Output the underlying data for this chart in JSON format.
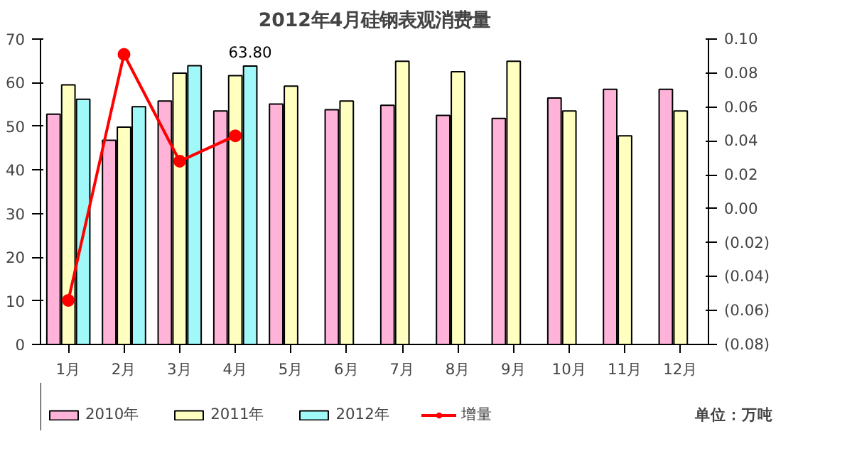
{
  "chart_data": {
    "type": "bar",
    "title": "2012年4月硅钢表观消费量",
    "categories": [
      "1月",
      "2月",
      "3月",
      "4月",
      "5月",
      "6月",
      "7月",
      "8月",
      "9月",
      "10月",
      "11月",
      "12月"
    ],
    "series": [
      {
        "name": "2010年",
        "color": "#ffb3d9",
        "values": [
          52.8,
          46.8,
          55.8,
          53.5,
          55.1,
          53.8,
          54.8,
          52.5,
          51.8,
          56.5,
          58.5,
          58.5
        ]
      },
      {
        "name": "2011年",
        "color": "#ffffc0",
        "values": [
          59.5,
          49.8,
          62.2,
          61.6,
          59.2,
          55.8,
          64.9,
          62.5,
          64.9,
          53.5,
          47.8,
          53.5
        ]
      },
      {
        "name": "2012年",
        "color": "#a0f8f8",
        "values": [
          56.2,
          54.5,
          63.9,
          63.8,
          null,
          null,
          null,
          null,
          null,
          null,
          null,
          null
        ],
        "value_labels": [
          null,
          null,
          null,
          "63.80",
          null,
          null,
          null,
          null,
          null,
          null,
          null,
          null
        ]
      },
      {
        "name": "增量",
        "type": "line",
        "axis": "y2",
        "color": "#ff0000",
        "marker": "circle",
        "values": [
          -0.054,
          0.091,
          0.028,
          0.043,
          null,
          null,
          null,
          null,
          null,
          null,
          null,
          null
        ]
      }
    ],
    "ylim": [
      0,
      70
    ],
    "yticks": [
      0,
      10,
      20,
      30,
      40,
      50,
      60,
      70
    ],
    "y2lim": [
      -0.08,
      0.1
    ],
    "y2ticks": [
      {
        "value": -0.08,
        "label": "(0.08)"
      },
      {
        "value": -0.06,
        "label": "(0.06)"
      },
      {
        "value": -0.04,
        "label": "(0.04)"
      },
      {
        "value": -0.02,
        "label": "(0.02)"
      },
      {
        "value": 0,
        "label": "0.00"
      },
      {
        "value": 0.02,
        "label": "0.02"
      },
      {
        "value": 0.04,
        "label": "0.04"
      },
      {
        "value": 0.06,
        "label": "0.06"
      },
      {
        "value": 0.08,
        "label": "0.08"
      },
      {
        "value": 0.1,
        "label": "0.10"
      }
    ],
    "legend": "bottom",
    "grid": false,
    "annotations": [
      "单位：万吨"
    ]
  }
}
